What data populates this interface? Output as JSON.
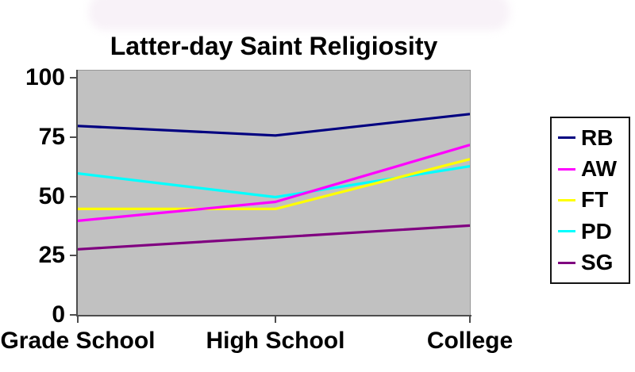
{
  "chart_data": {
    "type": "line",
    "title": "Latter-day Saint Religiosity",
    "categories": [
      "Grade School",
      "High School",
      "College"
    ],
    "series": [
      {
        "name": "RB",
        "color": "#000080",
        "values": [
          80,
          76,
          85
        ]
      },
      {
        "name": "AW",
        "color": "#ff00ff",
        "values": [
          40,
          48,
          72
        ]
      },
      {
        "name": "FT",
        "color": "#ffff00",
        "values": [
          45,
          45,
          66
        ]
      },
      {
        "name": "PD",
        "color": "#00ffff",
        "values": [
          60,
          50,
          63
        ]
      },
      {
        "name": "SG",
        "color": "#800080",
        "values": [
          28,
          33,
          38
        ]
      }
    ],
    "yticks": [
      100,
      75,
      50,
      25,
      0
    ],
    "ylim": [
      0,
      100
    ],
    "grid": false,
    "legend_position": "right",
    "xlabel": "",
    "ylabel": ""
  },
  "colors": {
    "plot_background": "#c1c1c1",
    "axis": "#4d4d4d",
    "legend_border": "#141414",
    "text": "#000000",
    "chart_background": "#ffffff"
  }
}
